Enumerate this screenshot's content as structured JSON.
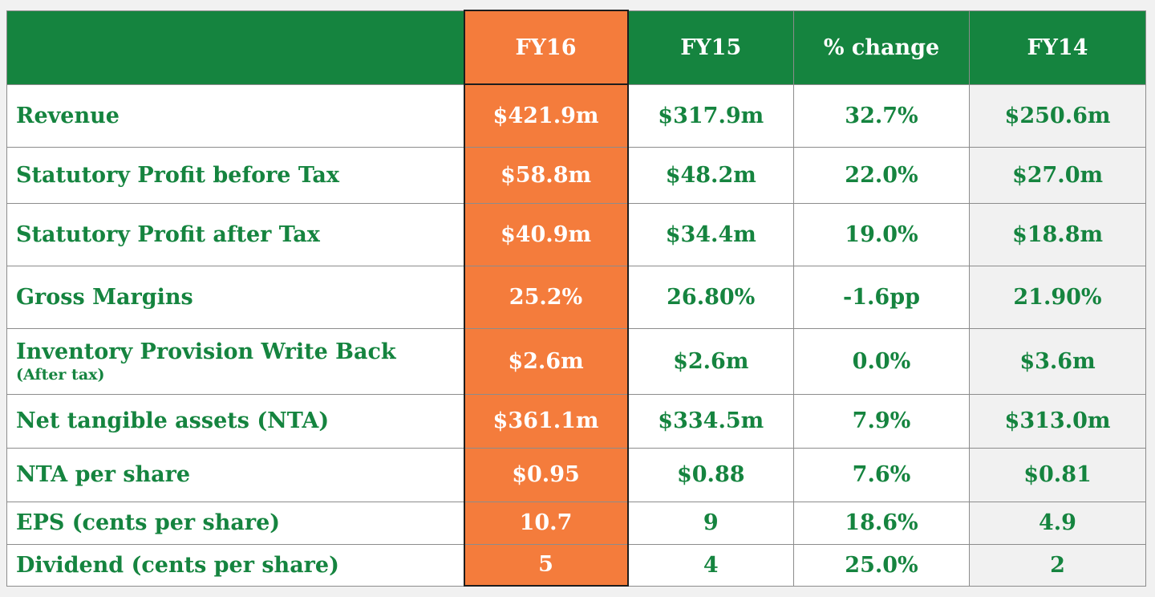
{
  "table": {
    "headers": {
      "label": "",
      "fy16": "FY16",
      "fy15": "FY15",
      "change": "% change",
      "fy14": "FY14"
    },
    "rows": [
      {
        "label": "Revenue",
        "sublabel": "",
        "fy16": "$421.9m",
        "fy15": "$317.9m",
        "change": "32.7%",
        "fy14": "$250.6m"
      },
      {
        "label": "Statutory Profit before Tax",
        "sublabel": "",
        "fy16": "$58.8m",
        "fy15": "$48.2m",
        "change": "22.0%",
        "fy14": "$27.0m"
      },
      {
        "label": "Statutory Profit after Tax",
        "sublabel": "",
        "fy16": "$40.9m",
        "fy15": "$34.4m",
        "change": "19.0%",
        "fy14": "$18.8m"
      },
      {
        "label": "Gross Margins",
        "sublabel": "",
        "fy16": "25.2%",
        "fy15": "26.80%",
        "change": "-1.6pp",
        "fy14": "21.90%"
      },
      {
        "label": "Inventory Provision Write Back",
        "sublabel": "(After tax)",
        "fy16": "$2.6m",
        "fy15": "$2.6m",
        "change": "0.0%",
        "fy14": "$3.6m"
      },
      {
        "label": "Net tangible assets (NTA)",
        "sublabel": "",
        "fy16": "$361.1m",
        "fy15": "$334.5m",
        "change": "7.9%",
        "fy14": "$313.0m"
      },
      {
        "label": "NTA per share",
        "sublabel": "",
        "fy16": "$0.95",
        "fy15": "$0.88",
        "change": "7.6%",
        "fy14": "$0.81"
      },
      {
        "label": "EPS (cents per share)",
        "sublabel": "",
        "fy16": "10.7",
        "fy15": "9",
        "change": "18.6%",
        "fy14": "4.9"
      },
      {
        "label": "Dividend (cents per share)",
        "sublabel": "",
        "fy16": "5",
        "fy15": "4",
        "change": "25.0%",
        "fy14": "2"
      }
    ]
  },
  "colors": {
    "header_green": "#15843f",
    "highlight_orange": "#f47c3c",
    "text_green": "#15843f",
    "fy14_background": "#f1f1f1"
  }
}
